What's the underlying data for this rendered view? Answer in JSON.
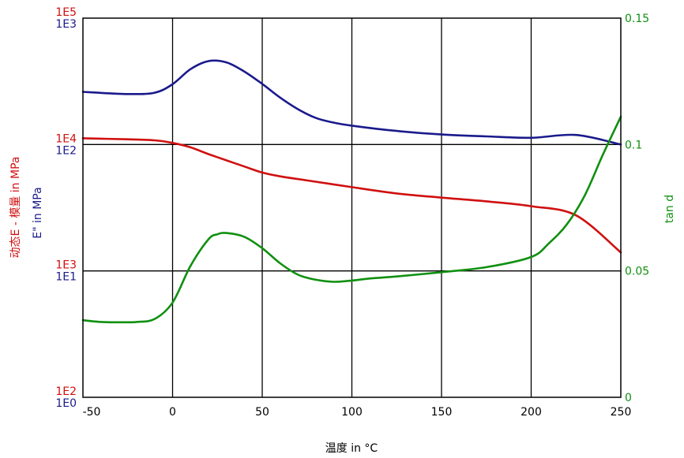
{
  "chart_data": {
    "type": "line",
    "title": "",
    "xlabel": "温度 in °C",
    "xlim": [
      -50,
      250
    ],
    "x_ticks": [
      "-50",
      "0",
      "50",
      "100",
      "150",
      "200",
      "250"
    ],
    "y_left_outer": {
      "label": "动态E - 模量 in MPa",
      "scale": "log",
      "lim": [
        100,
        100000
      ],
      "ticks": [
        "1E2",
        "1E3",
        "1E4",
        "1E5"
      ],
      "color": "#d01010"
    },
    "y_left_inner": {
      "label": "E\" in MPa",
      "scale": "log",
      "lim": [
        1,
        1000
      ],
      "ticks": [
        "1E0",
        "1E1",
        "1E2",
        "1E3"
      ],
      "color": "#1a1a8c"
    },
    "y_right": {
      "label": "tan d",
      "scale": "linear",
      "lim": [
        0,
        0.15
      ],
      "ticks": [
        "0",
        "0.05",
        "0.1",
        "0.15"
      ],
      "color": "#109010"
    },
    "grid": true,
    "series": [
      {
        "axis": "left_inner",
        "color": "#1a1a8c",
        "x": [
          -50,
          -25,
          -10,
          0,
          10,
          20,
          30,
          40,
          50,
          60,
          70,
          80,
          90,
          100,
          125,
          150,
          175,
          200,
          225,
          250
        ],
        "y": [
          261,
          251,
          257,
          300,
          395,
          457,
          447,
          378,
          302,
          235,
          190,
          162,
          149,
          141,
          128,
          120,
          116,
          113,
          119,
          100
        ]
      },
      {
        "axis": "left_outer",
        "color": "#d01010",
        "x": [
          -50,
          -25,
          -10,
          0,
          10,
          20,
          30,
          40,
          50,
          60,
          75,
          100,
          125,
          150,
          175,
          200,
          225,
          250
        ],
        "y": [
          11200,
          11000,
          10800,
          10300,
          9500,
          8400,
          7500,
          6700,
          6000,
          5600,
          5200,
          4600,
          4100,
          3800,
          3550,
          3250,
          2750,
          1400
        ]
      },
      {
        "axis": "right",
        "color": "#109010",
        "x": [
          -50,
          -40,
          -30,
          -20,
          -10,
          0,
          10,
          20,
          25,
          30,
          40,
          50,
          60,
          70,
          80,
          90,
          100,
          110,
          125,
          150,
          175,
          200,
          210,
          220,
          230,
          240,
          250
        ],
        "y": [
          0.0305,
          0.0298,
          0.0297,
          0.0298,
          0.031,
          0.0375,
          0.052,
          0.0625,
          0.0645,
          0.065,
          0.0635,
          0.059,
          0.053,
          0.0485,
          0.0465,
          0.0457,
          0.0462,
          0.047,
          0.0478,
          0.0495,
          0.0515,
          0.0555,
          0.061,
          0.0685,
          0.08,
          0.096,
          0.111
        ]
      }
    ]
  }
}
